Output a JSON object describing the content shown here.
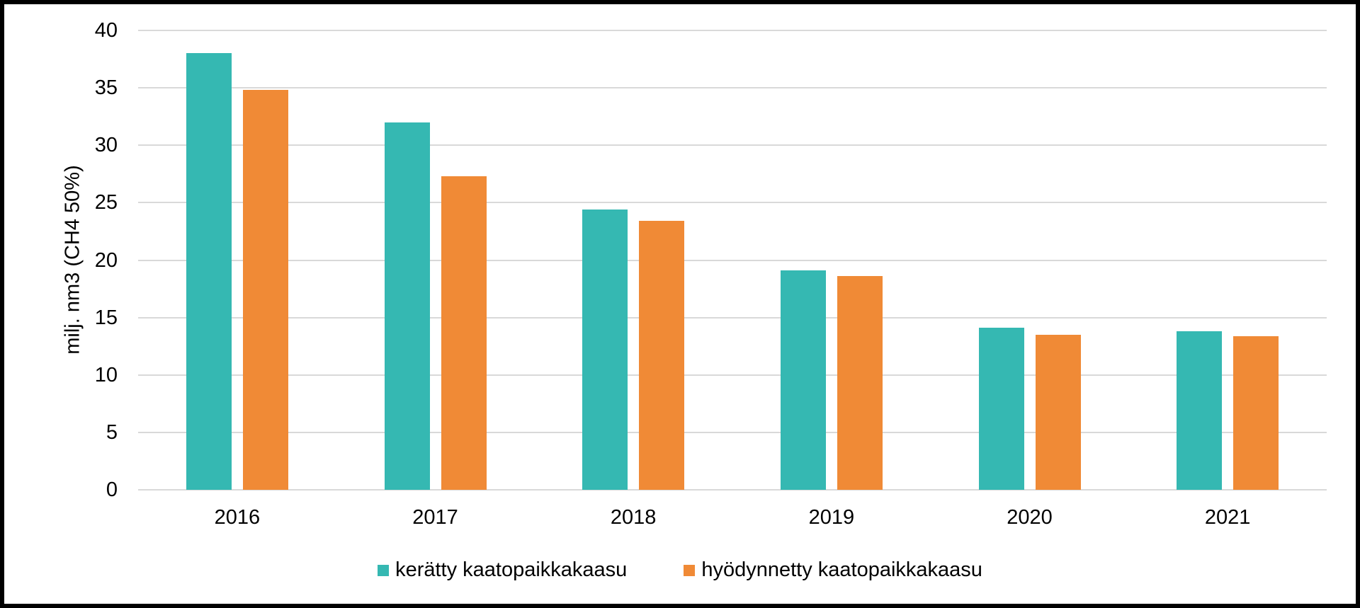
{
  "frame": {
    "border_color": "#000000",
    "background_color": "#ffffff"
  },
  "chart_data": {
    "type": "bar",
    "title": "",
    "categories": [
      "2016",
      "2017",
      "2018",
      "2019",
      "2020",
      "2021"
    ],
    "series": [
      {
        "name": "kerätty kaatopaikkakaasu",
        "color": "#35b8b2",
        "values": [
          38.0,
          32.0,
          24.4,
          19.1,
          14.1,
          13.8
        ]
      },
      {
        "name": "hyödynnetty kaatopaikkakaasu",
        "color": "#f08a36",
        "values": [
          34.8,
          27.3,
          23.4,
          18.6,
          13.5,
          13.4
        ]
      }
    ],
    "xlabel": "",
    "ylabel": "milj. nm3 (CH4 50%)",
    "ylim": [
      0,
      40
    ],
    "yticks": [
      0,
      5,
      10,
      15,
      20,
      25,
      30,
      35,
      40
    ],
    "grid": true,
    "gridline_color": "#d9d9d9",
    "text_color": "#000000",
    "legend_position": "bottom-center"
  }
}
